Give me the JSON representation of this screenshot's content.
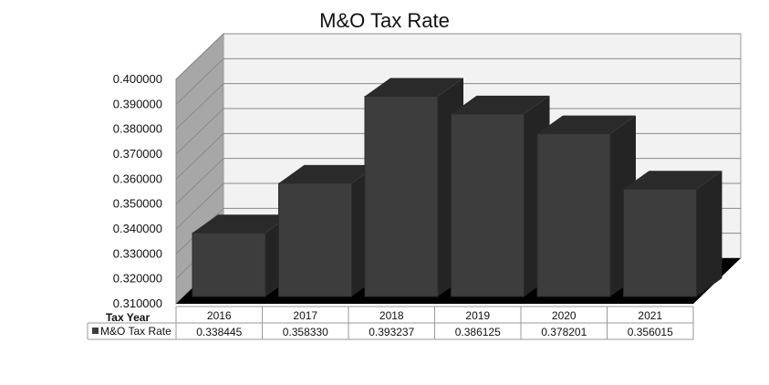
{
  "chart_data": {
    "type": "bar",
    "title": "M&O Tax Rate",
    "xlabel": "Tax Year",
    "ylabel": "",
    "categories": [
      "2016",
      "2017",
      "2018",
      "2019",
      "2020",
      "2021"
    ],
    "series": [
      {
        "name": "M&O Tax Rate",
        "values": [
          0.338445,
          0.35833,
          0.393237,
          0.386125,
          0.378201,
          0.356015
        ]
      }
    ],
    "value_labels": [
      "0.338445",
      "0.358330",
      "0.393237",
      "0.386125",
      "0.378201",
      "0.356015"
    ],
    "ylim": [
      0.31,
      0.4
    ],
    "yticks": [
      "0.310000",
      "0.320000",
      "0.330000",
      "0.340000",
      "0.350000",
      "0.360000",
      "0.370000",
      "0.380000",
      "0.390000",
      "0.400000"
    ],
    "grid": true,
    "legend": "data-table",
    "style": "3d-column",
    "colors": {
      "bar_front": "#3d3d3d",
      "bar_top": "#2a2a2a",
      "bar_side": "#242424",
      "wall_back": "#f2f2f2",
      "wall_side": "#a7a7a7",
      "floor": "#000000"
    }
  }
}
